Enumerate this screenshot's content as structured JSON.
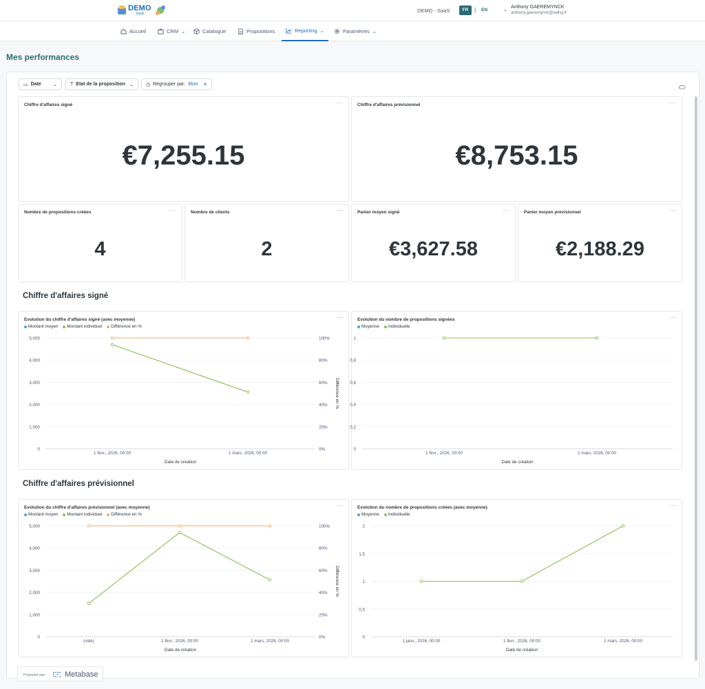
{
  "header": {
    "logo_text": "DEMO",
    "logo_sub": "SaaS",
    "tenant": "DEMO - SaaS",
    "lang_fr": "FR",
    "lang_sep": "|",
    "lang_en": "EN",
    "user_name": "Anthony GAEREMYNCK",
    "user_email": "anthony.gaeremynck@sellsy.fr"
  },
  "nav": [
    {
      "label": "Accueil",
      "icon": "home-icon"
    },
    {
      "label": "CRM",
      "icon": "briefcase-icon",
      "dropdown": true
    },
    {
      "label": "Catalogue",
      "icon": "box-icon"
    },
    {
      "label": "Propositions",
      "icon": "document-icon"
    },
    {
      "label": "Reporting",
      "icon": "chart-icon",
      "dropdown": true,
      "active": true
    },
    {
      "label": "Paramètres",
      "icon": "gear-icon",
      "dropdown": true
    }
  ],
  "page_title": "Mes performances",
  "filters": {
    "date": "Date",
    "etat": "Etat de la proposition",
    "group_label": "Regrouper par:",
    "group_value": "Mois"
  },
  "kpis": {
    "ca_signe": {
      "title": "Chiffre d'affaires signé",
      "value": "€7,255.15"
    },
    "ca_prev": {
      "title": "Chiffre d'affaires prévisionnel",
      "value": "€8,753.15"
    },
    "nb_props": {
      "title": "Nombre de propositions créées",
      "value": "4"
    },
    "nb_clients": {
      "title": "Nombre de clients",
      "value": "2"
    },
    "panier_signe": {
      "title": "Panier moyen signé",
      "value": "€3,627.58"
    },
    "panier_prev": {
      "title": "Panier moyen prévisionnel",
      "value": "€2,188.29"
    }
  },
  "sections": {
    "signe": "Chiffre d'affaires signé",
    "prev": "Chiffre d'affaires prévisionnel"
  },
  "colors": {
    "blue": "#509ee3",
    "green": "#88bf4d",
    "orange": "#f2a86f",
    "accent": "#2d6a73",
    "link": "#1a6fb8"
  },
  "footer": {
    "powered_by": "Propulsé par",
    "brand": "Metabase"
  },
  "chart_data": [
    {
      "type": "line",
      "title": "Evolution du chiffre d'affaires signé (avec moyenne)",
      "legend": [
        "Montant moyen",
        "Montant individuel",
        "Différence en %"
      ],
      "categories": [
        "1 févr., 2026, 00:00",
        "1 mars, 2026, 00:00"
      ],
      "xlabel": "Date de création",
      "ylabel_right": "Différence en %",
      "y_ticks": [
        "0",
        "1,000",
        "2,000",
        "3,000",
        "4,000",
        "5,000"
      ],
      "y2_ticks": [
        "0%",
        "20%",
        "40%",
        "60%",
        "80%",
        "100%"
      ],
      "ylim": [
        0,
        5000
      ],
      "series": [
        {
          "name": "Montant individuel",
          "axis": "left",
          "values": [
            4700,
            2560
          ]
        },
        {
          "name": "Différence en %",
          "axis": "right",
          "values": [
            100,
            100
          ]
        }
      ]
    },
    {
      "type": "line",
      "title": "Evolution du nombre de propositions signées",
      "legend": [
        "Moyenne",
        "Individuelle"
      ],
      "categories": [
        "1 févr., 2026, 00:00",
        "1 mars, 2026, 00:00"
      ],
      "xlabel": "Date de création",
      "y_ticks": [
        "0",
        "0,2",
        "0,4",
        "0,6",
        "0,8",
        "1"
      ],
      "ylim": [
        0,
        1
      ],
      "series": [
        {
          "name": "Individuelle",
          "axis": "left",
          "values": [
            1,
            1
          ]
        }
      ]
    },
    {
      "type": "line",
      "title": "Evolution du chiffre d'affaires prévisionnel (avec moyenne)",
      "legend": [
        "Montant moyen",
        "Montant individuel",
        "Différence en %"
      ],
      "categories": [
        "(vide)",
        "1 févr., 2026, 00:00",
        "1 mars, 2026, 00:00"
      ],
      "xlabel": "Date de création",
      "ylabel_right": "Différence en %",
      "y_ticks": [
        "0",
        "1,000",
        "2,000",
        "3,000",
        "4,000",
        "5,000"
      ],
      "y2_ticks": [
        "0%",
        "20%",
        "40%",
        "60%",
        "80%",
        "100%"
      ],
      "ylim": [
        0,
        5000
      ],
      "series": [
        {
          "name": "Montant individuel",
          "axis": "left",
          "values": [
            1500,
            4700,
            2560
          ]
        },
        {
          "name": "Différence en %",
          "axis": "right",
          "values": [
            100,
            100,
            100
          ]
        }
      ]
    },
    {
      "type": "line",
      "title": "Evolution du nombre de propositions créées (avec moyenne)",
      "legend": [
        "Moyenne",
        "Individuelle"
      ],
      "categories": [
        "1 janv., 2026, 00:00",
        "1 févr., 2026, 00:00",
        "1 mars, 2026, 00:00"
      ],
      "xlabel": "Date de création",
      "y_ticks": [
        "0",
        "0,5",
        "1",
        "1,5",
        "2"
      ],
      "ylim": [
        0,
        2
      ],
      "series": [
        {
          "name": "Individuelle",
          "axis": "left",
          "values": [
            1,
            1,
            2
          ]
        }
      ]
    }
  ]
}
